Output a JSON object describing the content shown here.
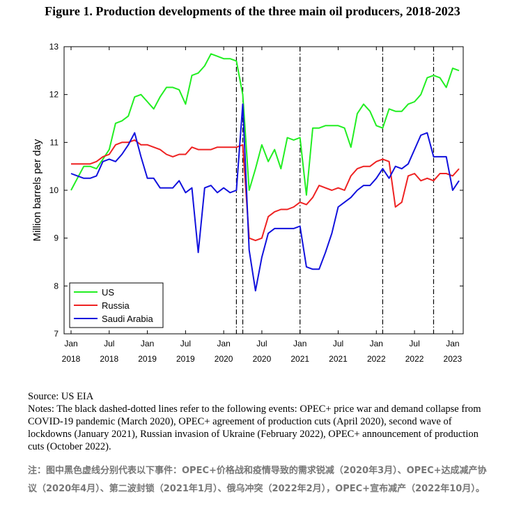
{
  "figure": {
    "title": "Figure 1. Production developments of the three main oil producers, 2018-2023",
    "source": "Source: US EIA",
    "notes": "Notes: The black dashed-dotted lines refer to the following events: OPEC+ price war and demand collapse from COVID-19 pandemic (March 2020), OPEC+ agreement of production cuts (April 2020), second wave of lockdowns (January 2021), Russian invasion of Ukraine (February 2022), OPEC+ announcement of production cuts (October 2022).",
    "note_cn": "注：图中黑色虚线分别代表以下事件：OPEC+价格战和疫情导致的需求锐减（2020年3月）、OPEC+达成减产协议（2020年4月）、第二波封锁（2021年1月）、俄乌冲突（2022年2月），OPEC+宣布减产（2022年10月）。"
  },
  "chart_data": {
    "type": "line",
    "ylabel": "Million barrels per day",
    "ylim": [
      7,
      13
    ],
    "yticks": [
      7,
      8,
      9,
      10,
      11,
      12,
      13
    ],
    "x": [
      "2018-01",
      "2018-02",
      "2018-03",
      "2018-04",
      "2018-05",
      "2018-06",
      "2018-07",
      "2018-08",
      "2018-09",
      "2018-10",
      "2018-11",
      "2018-12",
      "2019-01",
      "2019-02",
      "2019-03",
      "2019-04",
      "2019-05",
      "2019-06",
      "2019-07",
      "2019-08",
      "2019-09",
      "2019-10",
      "2019-11",
      "2019-12",
      "2020-01",
      "2020-02",
      "2020-03",
      "2020-04",
      "2020-05",
      "2020-06",
      "2020-07",
      "2020-08",
      "2020-09",
      "2020-10",
      "2020-11",
      "2020-12",
      "2021-01",
      "2021-02",
      "2021-03",
      "2021-04",
      "2021-05",
      "2021-06",
      "2021-07",
      "2021-08",
      "2021-09",
      "2021-10",
      "2021-11",
      "2021-12",
      "2022-01",
      "2022-02",
      "2022-03",
      "2022-04",
      "2022-05",
      "2022-06",
      "2022-07",
      "2022-08",
      "2022-09",
      "2022-10",
      "2022-11",
      "2022-12",
      "2023-01",
      "2023-02"
    ],
    "xticks": [
      {
        "month": "Jan",
        "year": "2018"
      },
      {
        "month": "Jul",
        "year": "2018"
      },
      {
        "month": "Jan",
        "year": "2019"
      },
      {
        "month": "Jul",
        "year": "2019"
      },
      {
        "month": "Jan",
        "year": "2020"
      },
      {
        "month": "Jul",
        "year": "2020"
      },
      {
        "month": "Jan",
        "year": "2021"
      },
      {
        "month": "Jul",
        "year": "2021"
      },
      {
        "month": "Jan",
        "year": "2022"
      },
      {
        "month": "Jul",
        "year": "2022"
      },
      {
        "month": "Jan",
        "year": "2023"
      }
    ],
    "event_lines": [
      "2020-03",
      "2020-04",
      "2021-01",
      "2022-02",
      "2022-10"
    ],
    "legend_position": "bottom-left",
    "series": [
      {
        "name": "US",
        "color": "#22ee22",
        "values": [
          10.0,
          10.25,
          10.5,
          10.5,
          10.45,
          10.65,
          10.85,
          11.4,
          11.45,
          11.55,
          11.95,
          12.0,
          11.85,
          11.7,
          11.95,
          12.15,
          12.15,
          12.1,
          11.8,
          12.4,
          12.45,
          12.6,
          12.85,
          12.8,
          12.75,
          12.75,
          12.7,
          12.0,
          10.0,
          10.45,
          10.95,
          10.6,
          10.85,
          10.45,
          11.1,
          11.05,
          11.1,
          9.9,
          11.3,
          11.3,
          11.35,
          11.35,
          11.35,
          11.3,
          10.9,
          11.6,
          11.8,
          11.65,
          11.35,
          11.3,
          11.7,
          11.65,
          11.65,
          11.8,
          11.85,
          12.0,
          12.35,
          12.4,
          12.35,
          12.15,
          12.55,
          12.5
        ]
      },
      {
        "name": "Russia",
        "color": "#ee2222",
        "values": [
          10.55,
          10.55,
          10.55,
          10.55,
          10.6,
          10.7,
          10.75,
          10.95,
          11.0,
          11.0,
          11.05,
          10.95,
          10.95,
          10.9,
          10.85,
          10.75,
          10.7,
          10.75,
          10.75,
          10.9,
          10.85,
          10.85,
          10.85,
          10.9,
          10.9,
          10.9,
          10.9,
          10.95,
          9.0,
          8.95,
          9.0,
          9.45,
          9.55,
          9.6,
          9.6,
          9.65,
          9.75,
          9.7,
          9.85,
          10.1,
          10.05,
          10.0,
          10.05,
          10.0,
          10.3,
          10.45,
          10.5,
          10.5,
          10.6,
          10.65,
          10.6,
          9.65,
          9.75,
          10.3,
          10.35,
          10.2,
          10.25,
          10.2,
          10.35,
          10.35,
          10.3,
          10.45
        ]
      },
      {
        "name": "Saudi Arabia",
        "color": "#1111dd",
        "values": [
          10.35,
          10.3,
          10.25,
          10.25,
          10.3,
          10.6,
          10.65,
          10.6,
          10.75,
          10.95,
          11.2,
          10.7,
          10.25,
          10.25,
          10.05,
          10.05,
          10.05,
          10.2,
          9.95,
          10.05,
          8.7,
          10.05,
          10.1,
          9.95,
          10.05,
          9.95,
          10.0,
          11.8,
          8.75,
          7.9,
          8.6,
          9.1,
          9.2,
          9.2,
          9.2,
          9.2,
          9.25,
          8.4,
          8.35,
          8.35,
          8.7,
          9.1,
          9.65,
          9.75,
          9.85,
          10.0,
          10.1,
          10.1,
          10.25,
          10.45,
          10.25,
          10.5,
          10.45,
          10.55,
          10.85,
          11.15,
          11.2,
          10.7,
          10.7,
          10.7,
          10.0,
          10.2
        ]
      }
    ]
  }
}
